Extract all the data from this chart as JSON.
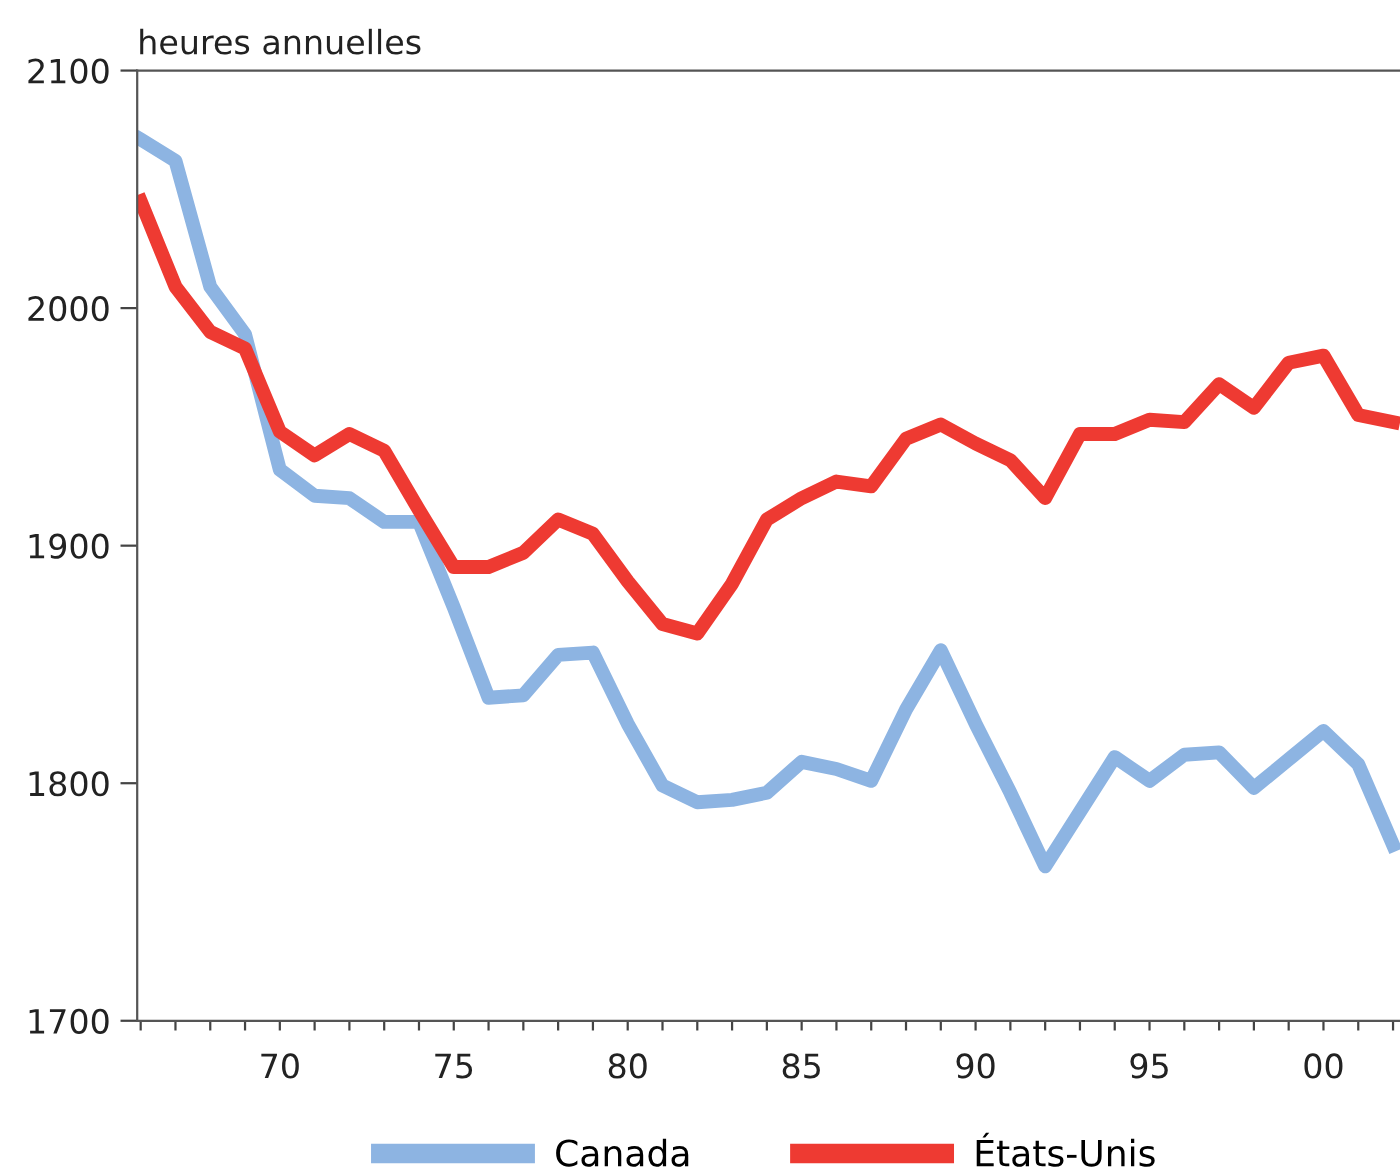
{
  "chart_data": {
    "type": "line",
    "ylabel": "heures annuelles",
    "x": [
      1966,
      1967,
      1968,
      1969,
      1970,
      1971,
      1972,
      1973,
      1974,
      1975,
      1976,
      1977,
      1978,
      1979,
      1980,
      1981,
      1982,
      1983,
      1984,
      1985,
      1986,
      1987,
      1988,
      1989,
      1990,
      1991,
      1992,
      1993,
      1994,
      1995,
      1996,
      1997,
      1998,
      1999,
      2000,
      2001,
      2002
    ],
    "series": [
      {
        "name": "Canada",
        "color": "#8db4e2",
        "values": [
          2071,
          2062,
          2009,
          1989,
          1932,
          1921,
          1920,
          1910,
          1910,
          1874,
          1836,
          1837,
          1854,
          1855,
          1825,
          1799,
          1792,
          1793,
          1796,
          1809,
          1806,
          1801,
          1831,
          1856,
          1825,
          1796,
          1765,
          1788,
          1811,
          1801,
          1812,
          1813,
          1798,
          1810,
          1822,
          1808,
          1774
        ]
      },
      {
        "name": "États-Unis",
        "color": "#ee3a32",
        "values": [
          2045,
          2009,
          1990,
          1983,
          1948,
          1938,
          1947,
          1940,
          1915,
          1891,
          1891,
          1897,
          1911,
          1905,
          1885,
          1867,
          1863,
          1884,
          1911,
          1920,
          1927,
          1925,
          1945,
          1951,
          1943,
          1936,
          1920,
          1947,
          1947,
          1953,
          1952,
          1968,
          1958,
          1977,
          1980,
          1955,
          1952
        ]
      }
    ],
    "xlim": [
      1965.9,
      2002.2
    ],
    "ylim": [
      1700,
      2100
    ],
    "yticks": [
      1700,
      1800,
      1900,
      2000,
      2100
    ],
    "xticks": [
      {
        "value": 1966,
        "label": null
      },
      {
        "value": 1967,
        "label": null
      },
      {
        "value": 1968,
        "label": null
      },
      {
        "value": 1969,
        "label": null
      },
      {
        "value": 1970,
        "label": "70"
      },
      {
        "value": 1971,
        "label": null
      },
      {
        "value": 1972,
        "label": null
      },
      {
        "value": 1973,
        "label": null
      },
      {
        "value": 1974,
        "label": null
      },
      {
        "value": 1975,
        "label": "75"
      },
      {
        "value": 1976,
        "label": null
      },
      {
        "value": 1977,
        "label": null
      },
      {
        "value": 1978,
        "label": null
      },
      {
        "value": 1979,
        "label": null
      },
      {
        "value": 1980,
        "label": "80"
      },
      {
        "value": 1981,
        "label": null
      },
      {
        "value": 1982,
        "label": null
      },
      {
        "value": 1983,
        "label": null
      },
      {
        "value": 1984,
        "label": null
      },
      {
        "value": 1985,
        "label": "85"
      },
      {
        "value": 1986,
        "label": null
      },
      {
        "value": 1987,
        "label": null
      },
      {
        "value": 1988,
        "label": null
      },
      {
        "value": 1989,
        "label": null
      },
      {
        "value": 1990,
        "label": "90"
      },
      {
        "value": 1991,
        "label": null
      },
      {
        "value": 1992,
        "label": null
      },
      {
        "value": 1993,
        "label": null
      },
      {
        "value": 1994,
        "label": null
      },
      {
        "value": 1995,
        "label": "95"
      },
      {
        "value": 1996,
        "label": null
      },
      {
        "value": 1997,
        "label": null
      },
      {
        "value": 1998,
        "label": null
      },
      {
        "value": 1999,
        "label": null
      },
      {
        "value": 2000,
        "label": "00"
      },
      {
        "value": 2001,
        "label": null
      },
      {
        "value": 2002,
        "label": null
      }
    ],
    "grid": false,
    "legend": "bottom",
    "marker": "none",
    "line_style": "solid"
  }
}
